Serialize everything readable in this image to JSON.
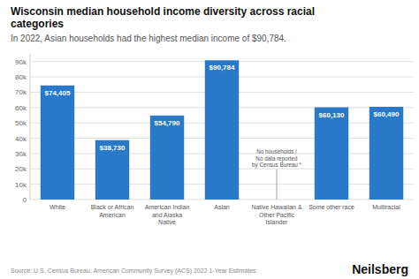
{
  "chart_data": {
    "type": "bar",
    "title": "Wisconsin median household income diversity across racial\ncategories",
    "subtitle": "In 2022, Asian households had the highest median income of $90,784.",
    "categories": [
      "White",
      "Black or African\nAmerican",
      "American Indian\nand Alaska\nNative",
      "Asian",
      "Native Hawaiian &\nOther Pacific\nIslander",
      "Some other race",
      "Multiracial"
    ],
    "values": [
      74405,
      38730,
      54790,
      90784,
      0,
      60130,
      60490
    ],
    "value_labels": [
      "$74,405",
      "$38,730",
      "$54,790",
      "$90,784",
      null,
      "$60,130",
      "$60,490"
    ],
    "data_labels": true,
    "color": "#2979C8",
    "annotations": [
      {
        "text": "No households /\nNo data reported\nby Census Bureau *",
        "category": "Native Hawaiian &\nOther Pacific\nIslander"
      }
    ],
    "source": "Source: U.S. Census Bureau, American Community Survey (ACS) 2022 1-Year Estimates",
    "brand": "Neilsberg",
    "ylim": [
      0,
      95000
    ],
    "yticks": [
      0,
      {
        "value": 10000,
        "label": "10k"
      },
      {
        "value": 20000,
        "label": "20k"
      },
      {
        "value": 30000,
        "label": "30k"
      },
      {
        "value": 40000,
        "label": "40k"
      },
      {
        "value": 50000,
        "label": "50k"
      },
      {
        "value": 60000,
        "label": "60k"
      },
      {
        "value": 70000,
        "label": "70k"
      },
      {
        "value": 80000,
        "label": "80k"
      },
      {
        "value": 90000,
        "label": "90k"
      }
    ],
    "grid": true
  }
}
